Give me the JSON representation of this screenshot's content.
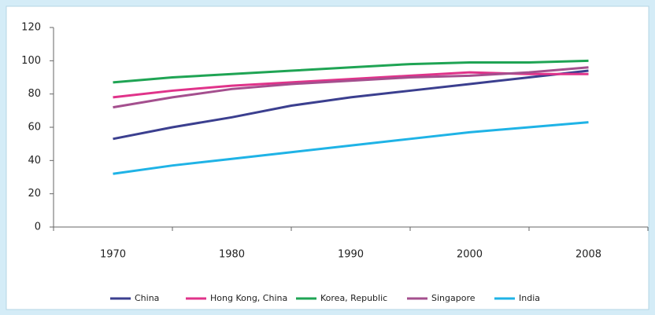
{
  "chart_data": {
    "type": "line",
    "categories": [
      "1970",
      null,
      "1980",
      null,
      "1990",
      null,
      "2000",
      null,
      "2008"
    ],
    "series": [
      {
        "name": "China",
        "color": "#3b3f8f",
        "values": [
          53,
          60,
          66,
          73,
          78,
          82,
          86,
          90,
          94
        ]
      },
      {
        "name": "Hong Kong, China",
        "color": "#e0338a",
        "values": [
          78,
          82,
          85,
          87,
          89,
          91,
          93,
          92,
          92
        ]
      },
      {
        "name": "Korea, Republic",
        "color": "#1fa454",
        "values": [
          87,
          90,
          92,
          94,
          96,
          98,
          99,
          99,
          100
        ]
      },
      {
        "name": "Singapore",
        "color": "#a44f8e",
        "values": [
          72,
          78,
          83,
          86,
          88,
          90,
          91,
          93,
          96
        ]
      },
      {
        "name": "India",
        "color": "#1fb3e6",
        "values": [
          32,
          37,
          41,
          45,
          49,
          53,
          57,
          60,
          63
        ]
      }
    ],
    "ylim": [
      0,
      120
    ],
    "yticks": [
      0,
      20,
      40,
      60,
      80,
      100,
      120
    ],
    "grid": false,
    "legend": "bottom"
  }
}
